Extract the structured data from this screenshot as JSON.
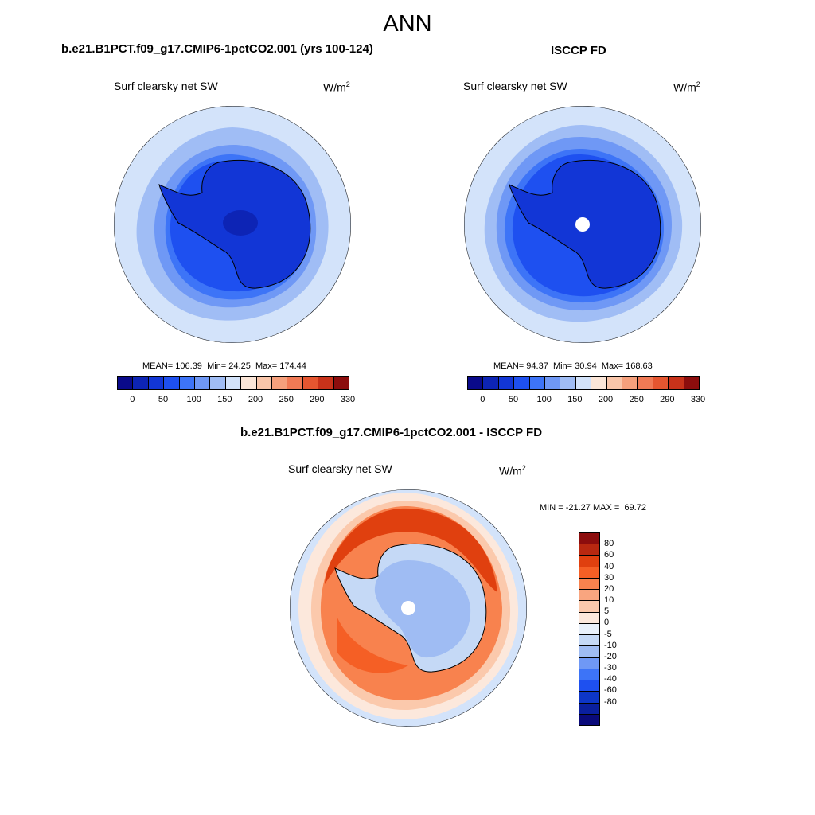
{
  "main_title": "ANN",
  "panel_left": {
    "title": "b.e21.B1PCT.f09_g17.CMIP6-1pctCO2.001 (yrs 100-124)",
    "variable": "Surf clearsky net SW",
    "units_base": "W/m",
    "units_exp": "2",
    "stats": {
      "mean_label": "MEAN=",
      "mean": "106.39",
      "min_label": "Min=",
      "min": "24.25",
      "max_label": "Max=",
      "max": "174.44"
    }
  },
  "panel_right": {
    "title": "ISCCP FD",
    "variable": "Surf clearsky net SW",
    "units_base": "W/m",
    "units_exp": "2",
    "stats": {
      "mean_label": "MEAN=",
      "mean": "94.37",
      "min_label": "Min=",
      "min": "30.94",
      "max_label": "Max=",
      "max": "168.63"
    }
  },
  "panel_diff": {
    "title": "b.e21.B1PCT.f09_g17.CMIP6-1pctCO2.001 - ISCCP FD",
    "variable": "Surf clearsky net SW",
    "units_base": "W/m",
    "units_exp": "2",
    "stats": {
      "min_label": "MIN =",
      "min": "-21.27",
      "max_label": "MAX =",
      "max": "69.72"
    }
  },
  "colorbar_abs": {
    "colors": [
      "#0a0a8a",
      "#0d24b5",
      "#1236d6",
      "#1e50f0",
      "#3d74f7",
      "#6f98f5",
      "#a0bdf5",
      "#d3e3fa",
      "#fbe6d8",
      "#f9c6aa",
      "#f5a07c",
      "#f07a55",
      "#e55630",
      "#c8321a",
      "#8c0d0d"
    ],
    "labels": [
      "0",
      "50",
      "100",
      "150",
      "200",
      "250",
      "290",
      "330"
    ]
  },
  "colorbar_diff": {
    "colors": [
      "#8c0d0d",
      "#b82810",
      "#e0400f",
      "#f55f25",
      "#f8824e",
      "#f9a57f",
      "#fbc9ac",
      "#fce8dc",
      "#e9f1fb",
      "#c5d9f6",
      "#9fbcf3",
      "#6f98f5",
      "#3d74f7",
      "#1e50f0",
      "#0d36c7",
      "#0a1f9e",
      "#0a0a7a"
    ],
    "labels": [
      "80",
      "60",
      "40",
      "30",
      "20",
      "10",
      "5",
      "0",
      "-5",
      "-10",
      "-20",
      "-30",
      "-40",
      "-60",
      "-80"
    ]
  }
}
